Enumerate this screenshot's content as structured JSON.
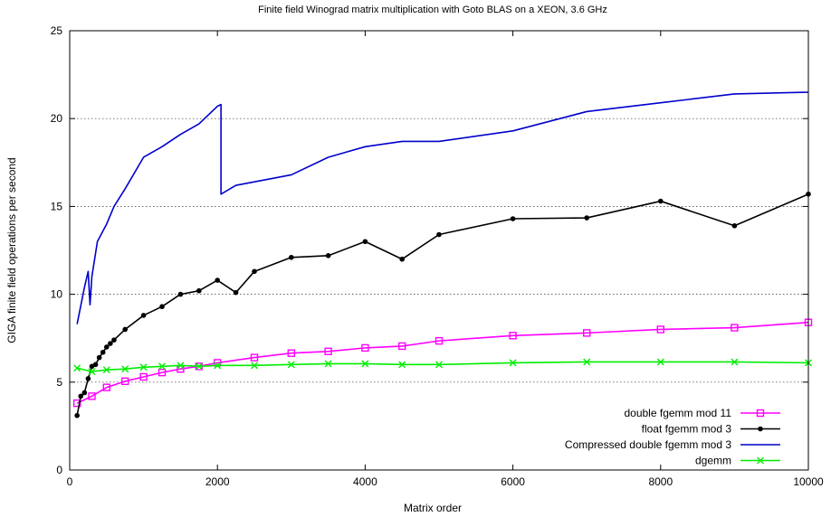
{
  "chart_data": {
    "type": "line",
    "title": "Finite field Winograd matrix multiplication with Goto BLAS on a XEON, 3.6 GHz",
    "xlabel": "Matrix order",
    "ylabel": "GIGA finite field operations per second",
    "xlim": [
      0,
      10000
    ],
    "ylim": [
      0,
      25
    ],
    "xticks": [
      0,
      2000,
      4000,
      6000,
      8000,
      10000
    ],
    "yticks": [
      0,
      5,
      10,
      15,
      20,
      25
    ],
    "grid": "horizontal dotted",
    "legend_position": "bottom-right",
    "series": [
      {
        "name": "double fgemm mod 11",
        "color": "#ff00ff",
        "marker": "square",
        "x": [
          100,
          300,
          500,
          750,
          1000,
          1250,
          1500,
          1750,
          2000,
          2500,
          3000,
          3500,
          4000,
          4500,
          5000,
          6000,
          7000,
          8000,
          9000,
          10000
        ],
        "y": [
          3.8,
          4.2,
          4.7,
          5.05,
          5.3,
          5.55,
          5.75,
          5.9,
          6.1,
          6.4,
          6.65,
          6.75,
          6.95,
          7.05,
          7.35,
          7.65,
          7.8,
          8.0,
          8.1,
          8.4
        ]
      },
      {
        "name": "float fgemm mod 3",
        "color": "#000000",
        "marker": "circle",
        "x": [
          100,
          150,
          200,
          250,
          300,
          350,
          400,
          450,
          500,
          550,
          600,
          750,
          1000,
          1250,
          1500,
          1750,
          2000,
          2250,
          2500,
          3000,
          3500,
          4000,
          4500,
          5000,
          6000,
          7000,
          8000,
          9000,
          10000
        ],
        "y": [
          3.1,
          4.2,
          4.4,
          5.2,
          5.9,
          6.0,
          6.4,
          6.7,
          7.0,
          7.2,
          7.4,
          8.0,
          8.8,
          9.3,
          10.0,
          10.2,
          10.8,
          10.1,
          11.3,
          12.1,
          12.2,
          13.0,
          12.0,
          13.4,
          14.3,
          14.35,
          15.3,
          13.9,
          15.7
        ]
      },
      {
        "name": "Compressed double fgemm mod 3",
        "color": "#0000cc",
        "marker": "none",
        "x": [
          100,
          200,
          250,
          275,
          300,
          375,
          500,
          600,
          750,
          1000,
          1250,
          1500,
          1750,
          2000,
          2048,
          2048,
          2250,
          2500,
          3000,
          3500,
          4000,
          4500,
          5000,
          6000,
          7000,
          8000,
          9000,
          10000
        ],
        "y": [
          8.3,
          10.4,
          11.3,
          9.4,
          11.0,
          13.0,
          14.0,
          15.0,
          16.0,
          17.8,
          18.4,
          19.1,
          19.7,
          20.7,
          20.8,
          15.7,
          16.2,
          16.4,
          16.8,
          17.8,
          18.4,
          18.7,
          18.7,
          19.3,
          20.4,
          20.9,
          21.4,
          21.5
        ]
      },
      {
        "name": "dgemm",
        "color": "#00ee00",
        "marker": "x",
        "x": [
          100,
          300,
          500,
          750,
          1000,
          1250,
          1500,
          1750,
          2000,
          2500,
          3000,
          3500,
          4000,
          4500,
          5000,
          6000,
          7000,
          8000,
          9000,
          10000
        ],
        "y": [
          5.8,
          5.6,
          5.7,
          5.75,
          5.85,
          5.9,
          5.95,
          5.9,
          5.95,
          5.95,
          6.0,
          6.05,
          6.05,
          6.0,
          6.0,
          6.1,
          6.15,
          6.15,
          6.15,
          6.1
        ]
      }
    ]
  }
}
